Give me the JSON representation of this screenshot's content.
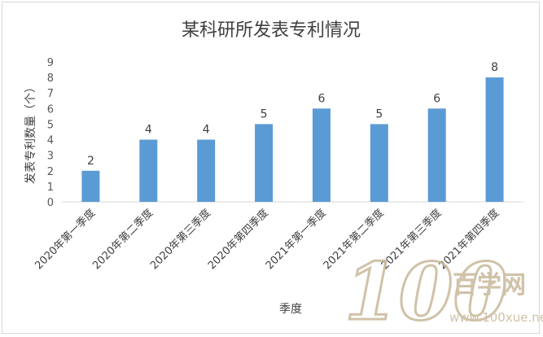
{
  "chart_data": {
    "type": "bar",
    "title": "某科研所发表专利情况",
    "xlabel": "季度",
    "ylabel": "发表专利数量（个）",
    "categories": [
      "2020年第一季度",
      "2020年第二季度",
      "2020年第三季度",
      "2020年第四季度",
      "2021年第一季度",
      "2021年第二季度",
      "2021年第三季度",
      "2021年第四季度"
    ],
    "values": [
      2,
      4,
      4,
      5,
      6,
      5,
      6,
      8
    ],
    "ylim": [
      0,
      9
    ],
    "yticks": [
      0,
      1,
      2,
      3,
      4,
      5,
      6,
      7,
      8,
      9
    ],
    "grid": false,
    "legend": "none",
    "bar_color": "#5b9bd5",
    "data_labels": true
  },
  "watermark": {
    "digits": "100",
    "name": "百学网",
    "url": "www.100xue.net",
    "color": "#c8b89a"
  }
}
